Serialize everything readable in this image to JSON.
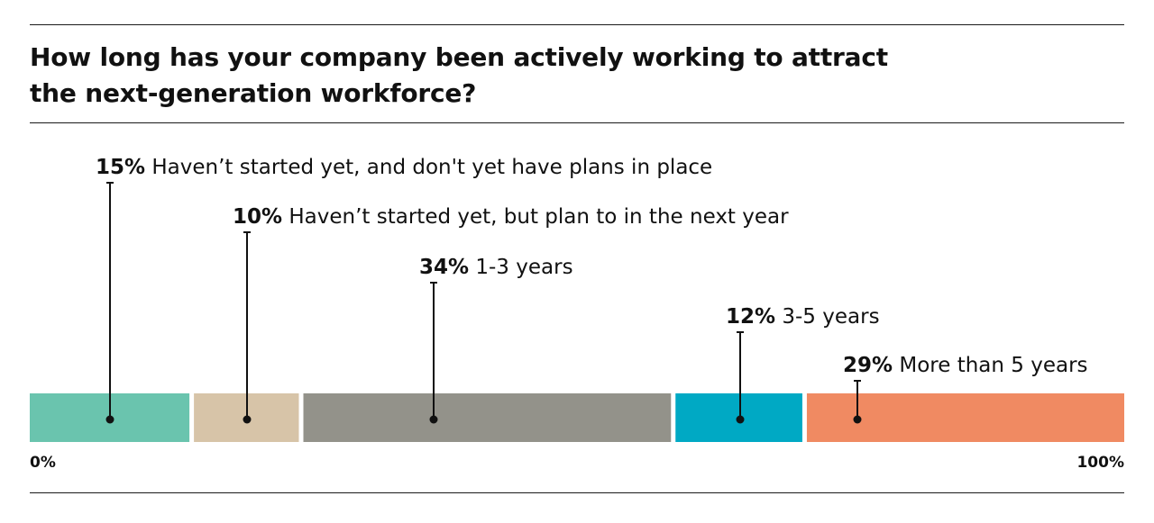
{
  "title": "How long has your company been actively working to attract the next-generation workforce?",
  "chart_data": {
    "type": "bar",
    "orientation": "horizontal-stacked-100",
    "title": "How long has your company been actively working to attract the next-generation workforce?",
    "axis": {
      "min_label": "0%",
      "max_label": "100%",
      "range": [
        0,
        100
      ]
    },
    "segments": [
      {
        "value": 15,
        "value_label": "15%",
        "label": "Haven’t started yet, and don't yet have plans in place",
        "color": "#6ac4ae"
      },
      {
        "value": 10,
        "value_label": "10%",
        "label": "Haven’t started yet, but plan to in the next year",
        "color": "#d7c4a8"
      },
      {
        "value": 34,
        "value_label": "34%",
        "label": "1-3 years",
        "color": "#93928a"
      },
      {
        "value": 12,
        "value_label": "12%",
        "label": "3-5 years",
        "color": "#00a9c4"
      },
      {
        "value": 29,
        "value_label": "29%",
        "label": "More than 5 years",
        "color": "#f08a62"
      }
    ]
  }
}
